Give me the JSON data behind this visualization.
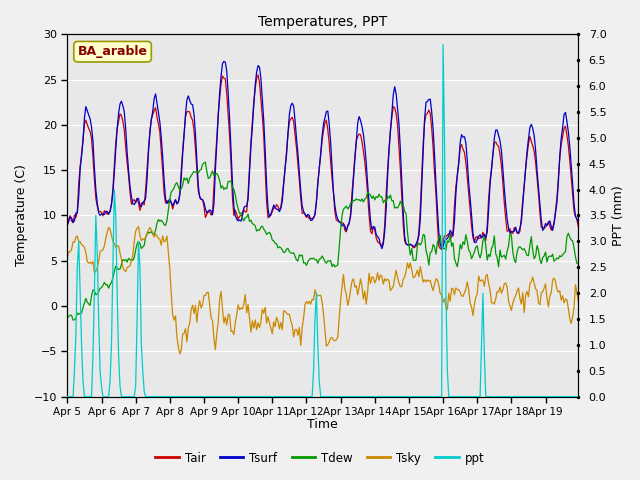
{
  "title": "Temperatures, PPT",
  "xlabel": "Time",
  "ylabel_left": "Temperature (C)",
  "ylabel_right": "PPT (mm)",
  "ylim_left": [
    -10,
    30
  ],
  "ylim_right": [
    0.0,
    7.0
  ],
  "yticks_left": [
    -10,
    -5,
    0,
    5,
    10,
    15,
    20,
    25,
    30
  ],
  "yticks_right": [
    0.0,
    0.5,
    1.0,
    1.5,
    2.0,
    2.5,
    3.0,
    3.5,
    4.0,
    4.5,
    5.0,
    5.5,
    6.0,
    6.5,
    7.0
  ],
  "colors": {
    "Tair": "#cc0000",
    "Tsurf": "#0000cc",
    "Tdew": "#009900",
    "Tsky": "#cc8800",
    "ppt": "#00cccc"
  },
  "site_label": "BA_arable",
  "site_label_color": "#880000",
  "site_label_bg": "#ffffcc",
  "plot_bg_color": "#e8e8e8",
  "grid_color": "#ffffff",
  "fig_bg_color": "#f0f0f0"
}
